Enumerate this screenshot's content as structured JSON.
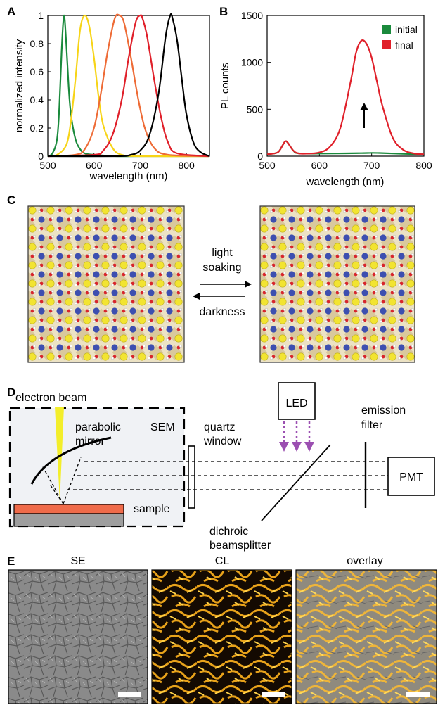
{
  "panels": {
    "a": "A",
    "b": "B",
    "c": "C",
    "d": "D",
    "e": "E"
  },
  "colors": {
    "green": "#1a8a3c",
    "yellow": "#f7d417",
    "orange": "#ee6b36",
    "red": "#e0202a",
    "black": "#000000",
    "lead": "#c9a96a",
    "iodide": "#f2e431",
    "cation": "#3d4fb0",
    "oxygen": "#d8252c",
    "sample": "#ef6b4a",
    "substrate": "#9e9e9e",
    "beam": "#f3ee2a",
    "led_arrow": "#9b4fb1",
    "sem_box": "#f0f2f5"
  },
  "chart_data": [
    {
      "type": "line",
      "panel": "A",
      "xlabel": "wavelength (nm)",
      "ylabel": "normalized intensity",
      "xlim": [
        500,
        850
      ],
      "ylim": [
        0,
        1
      ],
      "xticks": [
        500,
        600,
        700,
        800
      ],
      "yticks": [
        0,
        0.2,
        0.4,
        0.6,
        0.8,
        1
      ],
      "ytick_labels": [
        "0",
        "0.2",
        "0.4",
        "0.6",
        "0.8",
        "1"
      ],
      "series": [
        {
          "color": "green",
          "x": [
            500,
            510,
            520,
            525,
            530,
            535,
            540,
            545,
            550,
            560,
            570,
            580,
            600,
            650,
            700,
            850
          ],
          "y": [
            0,
            0.02,
            0.12,
            0.35,
            0.75,
            1.0,
            0.8,
            0.5,
            0.3,
            0.12,
            0.05,
            0.02,
            0.01,
            0,
            0,
            0
          ]
        },
        {
          "color": "yellow",
          "x": [
            500,
            520,
            540,
            550,
            560,
            570,
            580,
            590,
            600,
            610,
            620,
            640,
            660,
            700,
            850
          ],
          "y": [
            0,
            0.01,
            0.08,
            0.25,
            0.55,
            0.9,
            1.0,
            0.92,
            0.7,
            0.42,
            0.22,
            0.06,
            0.01,
            0,
            0
          ]
        },
        {
          "color": "orange",
          "x": [
            500,
            560,
            580,
            600,
            615,
            630,
            645,
            655,
            665,
            680,
            695,
            710,
            730,
            760,
            850
          ],
          "y": [
            0,
            0.01,
            0.05,
            0.2,
            0.45,
            0.75,
            0.98,
            1.0,
            0.95,
            0.7,
            0.42,
            0.2,
            0.06,
            0.01,
            0
          ]
        },
        {
          "color": "red",
          "x": [
            500,
            600,
            620,
            640,
            660,
            675,
            690,
            700,
            705,
            715,
            730,
            745,
            760,
            780,
            850
          ],
          "y": [
            0,
            0.01,
            0.04,
            0.15,
            0.4,
            0.7,
            0.95,
            1.0,
            0.98,
            0.85,
            0.55,
            0.28,
            0.1,
            0.02,
            0
          ]
        },
        {
          "color": "black",
          "x": [
            500,
            650,
            680,
            700,
            720,
            740,
            755,
            765,
            770,
            780,
            790,
            800,
            815,
            830,
            850
          ],
          "y": [
            0,
            0,
            0.01,
            0.04,
            0.15,
            0.45,
            0.85,
            1.0,
            0.98,
            0.82,
            0.55,
            0.3,
            0.1,
            0.03,
            0
          ]
        }
      ]
    },
    {
      "type": "line",
      "panel": "B",
      "xlabel": "wavelength (nm)",
      "ylabel": "PL counts",
      "xlim": [
        500,
        800
      ],
      "ylim": [
        0,
        1500
      ],
      "xticks": [
        500,
        600,
        700,
        800
      ],
      "yticks": [
        0,
        500,
        1000,
        1500
      ],
      "legend": "top-right",
      "series": [
        {
          "name": "initial",
          "color": "green",
          "x": [
            500,
            520,
            530,
            535,
            540,
            550,
            560,
            600,
            650,
            680,
            700,
            720,
            760,
            800
          ],
          "y": [
            20,
            40,
            120,
            160,
            140,
            60,
            30,
            28,
            30,
            32,
            35,
            33,
            25,
            20
          ]
        },
        {
          "name": "final",
          "color": "red",
          "x": [
            500,
            520,
            530,
            535,
            540,
            550,
            560,
            580,
            600,
            620,
            640,
            660,
            670,
            680,
            690,
            700,
            710,
            720,
            740,
            760,
            780,
            800
          ],
          "y": [
            20,
            40,
            120,
            160,
            140,
            60,
            30,
            28,
            40,
            100,
            300,
            800,
            1100,
            1230,
            1200,
            1050,
            800,
            550,
            200,
            70,
            30,
            20
          ]
        }
      ],
      "annotation": "upward arrow at peak"
    }
  ],
  "schematic": {
    "light_soaking_1": "light",
    "light_soaking_2": "soaking",
    "darkness": "darkness",
    "electron_beam": "electron beam",
    "parabolic_1": "parabolic",
    "parabolic_2": "mirror",
    "sem": "SEM",
    "quartz_1": "quartz",
    "quartz_2": "window",
    "sample": "sample",
    "led": "LED",
    "emission_1": "emission",
    "emission_2": "filter",
    "pmt": "PMT",
    "dichroic_1": "dichroic",
    "dichroic_2": "beamsplitter"
  },
  "images": {
    "se": "SE",
    "cl": "CL",
    "overlay": "overlay"
  }
}
